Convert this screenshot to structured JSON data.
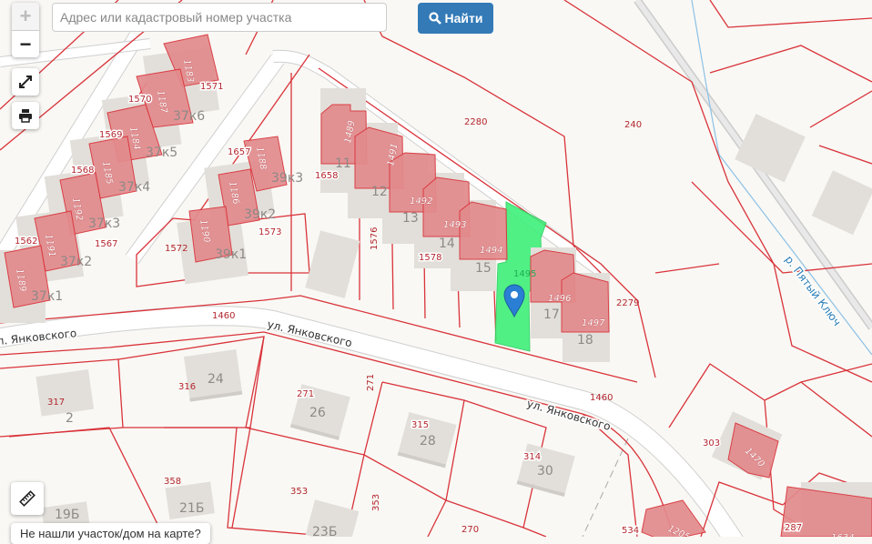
{
  "search": {
    "placeholder": "Адрес или кадастровый номер участка",
    "button_label": "Найти",
    "button_icon": "search-icon"
  },
  "controls": {
    "zoom_in": "+",
    "zoom_out": "−",
    "fullscreen_icon": "expand-icon",
    "print_icon": "printer-icon",
    "measure_icon": "ruler-icon"
  },
  "notice": "Не нашли участок/дом на карте?",
  "colors": {
    "parcel_border": "#d9333a",
    "owned_building": "#e38b8d",
    "selected_parcel": "#3ef07a",
    "button": "#337ab7",
    "marker": "#2a7fd4"
  },
  "map": {
    "selected_parcel": "1495",
    "parcels": [
      "2280",
      "240",
      "2279",
      "1460",
      "1460",
      "1658",
      "1576",
      "1578",
      "1570",
      "1571",
      "1569",
      "1568",
      "1562",
      "1567",
      "1657",
      "1573",
      "1572",
      "316",
      "317",
      "271",
      "271",
      "315",
      "314",
      "358",
      "353",
      "353",
      "270",
      "303",
      "534",
      "287"
    ],
    "buildings": [
      "1183",
      "1187",
      "1184",
      "1185",
      "1192",
      "1191",
      "1189",
      "1188",
      "1186",
      "1190",
      "1489",
      "1491",
      "1492",
      "1493",
      "1494",
      "1496",
      "1497",
      "1470",
      "1205",
      "1634"
    ],
    "houses": [
      "11",
      "12",
      "13",
      "14",
      "15",
      "17",
      "18",
      "37к6",
      "37к5",
      "37к4",
      "37к3",
      "37к2",
      "37к1",
      "39к3",
      "39к2",
      "39к1",
      "24",
      "2",
      "26",
      "28",
      "30",
      "21Б",
      "23Б",
      "19Б"
    ],
    "streets": [
      "ул. Янковского",
      "ул. Янковского",
      "ул. Янковского"
    ],
    "river": "р. Пятый Ключ"
  }
}
